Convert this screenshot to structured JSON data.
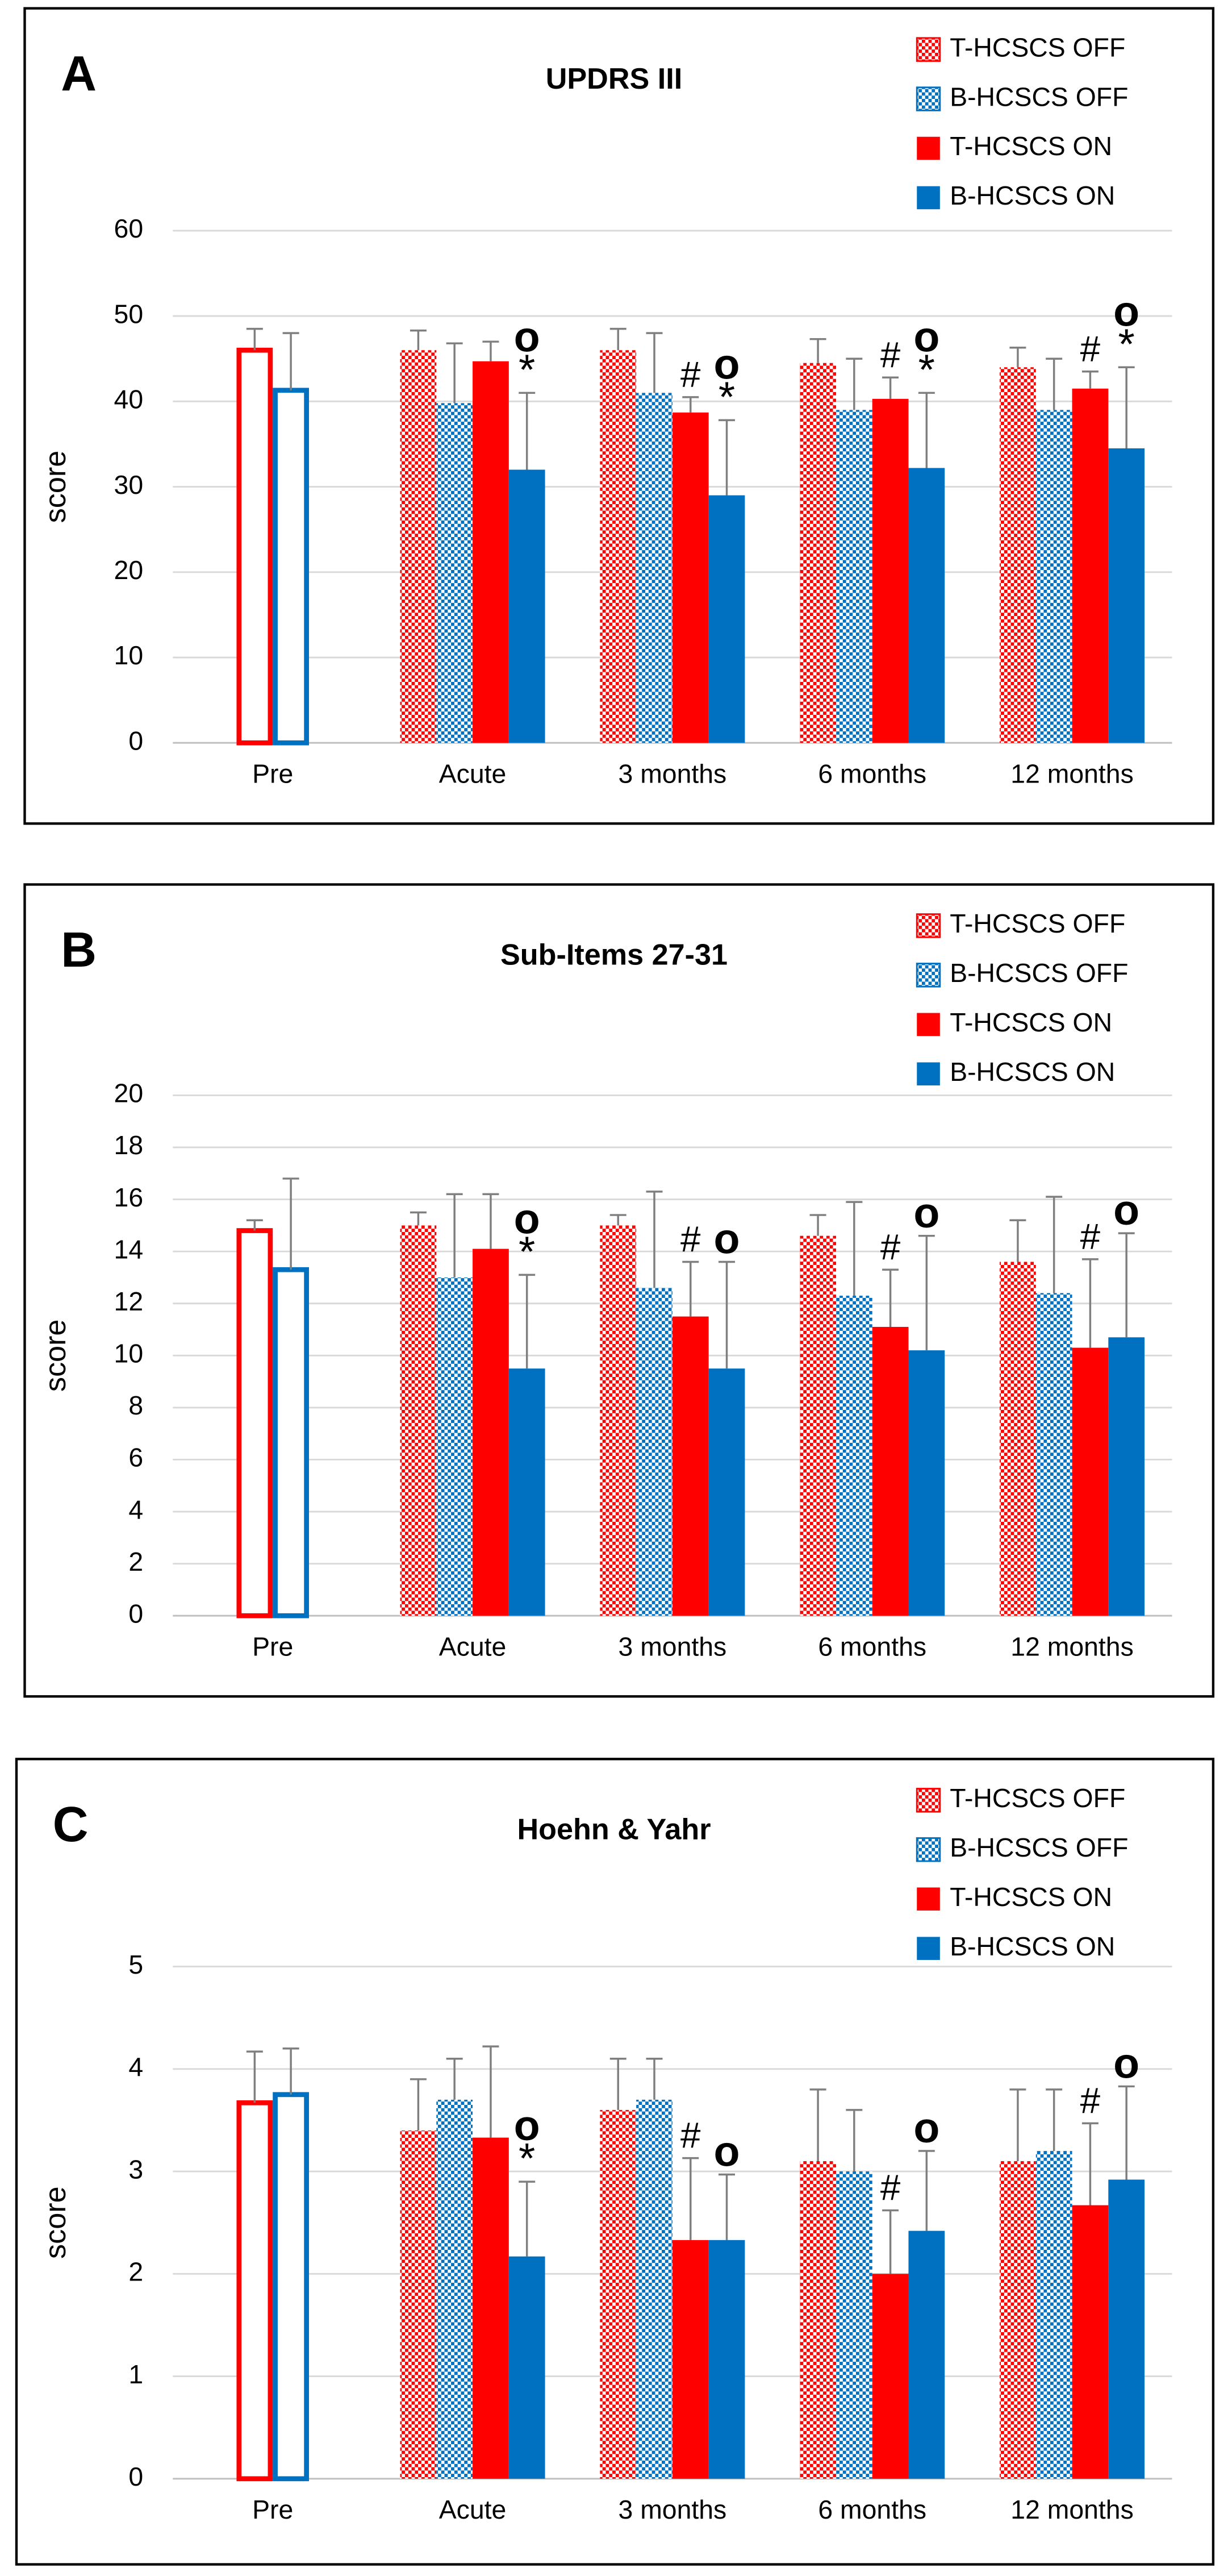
{
  "chart_data": [
    {
      "type": "bar",
      "panel": "A",
      "title": "UPDRS III",
      "y_label": "score",
      "categories": [
        "Pre",
        "Acute",
        "3 months",
        "6 months",
        "12 months"
      ],
      "hollow_category_index": 0,
      "ylim": [
        0,
        60
      ],
      "yticks": [
        0,
        10,
        20,
        30,
        40,
        50,
        60
      ],
      "grid": true,
      "series": [
        {
          "name": "T-HCSCS OFF",
          "color": "#ff0000",
          "pattern": "checker",
          "values": [
            46,
            46,
            46,
            44.5,
            44
          ],
          "errors": [
            2.5,
            2.3,
            2.5,
            2.8,
            2.3
          ],
          "markers": [
            null,
            null,
            null,
            null,
            null
          ]
        },
        {
          "name": "B-HCSCS OFF",
          "color": "#0070c0",
          "pattern": "checker",
          "values": [
            41.3,
            39.8,
            41,
            39,
            39
          ],
          "errors": [
            6.7,
            7,
            7,
            6,
            6
          ],
          "markers": [
            null,
            null,
            null,
            null,
            null
          ]
        },
        {
          "name": "T-HCSCS ON",
          "color": "#ff0000",
          "pattern": "solid",
          "values": [
            null,
            44.7,
            38.7,
            40.3,
            41.5
          ],
          "errors": [
            null,
            2.3,
            1.8,
            2.5,
            2
          ],
          "markers": [
            null,
            null,
            [
              "#"
            ],
            [
              "#"
            ],
            [
              "#"
            ]
          ]
        },
        {
          "name": "B-HCSCS ON",
          "color": "#0070c0",
          "pattern": "solid",
          "values": [
            null,
            32,
            29,
            32.2,
            34.5
          ],
          "errors": [
            null,
            9,
            8.8,
            8.8,
            9.5
          ],
          "markers": [
            null,
            [
              "o",
              "*"
            ],
            [
              "o",
              "*"
            ],
            [
              "o",
              "*"
            ],
            [
              "o",
              "*"
            ]
          ]
        }
      ]
    },
    {
      "type": "bar",
      "panel": "B",
      "title": "Sub-Items 27-31",
      "y_label": "score",
      "categories": [
        "Pre",
        "Acute",
        "3 months",
        "6 months",
        "12 months"
      ],
      "hollow_category_index": 0,
      "ylim": [
        0,
        20
      ],
      "yticks": [
        0,
        2,
        4,
        6,
        8,
        10,
        12,
        14,
        16,
        18,
        20
      ],
      "grid": true,
      "series": [
        {
          "name": "T-HCSCS OFF",
          "color": "#ff0000",
          "pattern": "checker",
          "values": [
            14.8,
            15,
            15,
            14.6,
            13.6
          ],
          "errors": [
            0.4,
            0.5,
            0.4,
            0.8,
            1.6
          ],
          "markers": [
            null,
            null,
            null,
            null,
            null
          ]
        },
        {
          "name": "B-HCSCS OFF",
          "color": "#0070c0",
          "pattern": "checker",
          "values": [
            13.3,
            13,
            12.6,
            12.3,
            12.4
          ],
          "errors": [
            3.5,
            3.2,
            3.7,
            3.6,
            3.7
          ],
          "markers": [
            null,
            null,
            null,
            null,
            null
          ]
        },
        {
          "name": "T-HCSCS ON",
          "color": "#ff0000",
          "pattern": "solid",
          "values": [
            null,
            14.1,
            11.5,
            11.1,
            10.3
          ],
          "errors": [
            null,
            2.1,
            2.1,
            2.2,
            3.4
          ],
          "markers": [
            null,
            null,
            [
              "#"
            ],
            [
              "#"
            ],
            [
              "#"
            ]
          ]
        },
        {
          "name": "B-HCSCS ON",
          "color": "#0070c0",
          "pattern": "solid",
          "values": [
            null,
            9.5,
            9.5,
            10.2,
            10.7
          ],
          "errors": [
            null,
            3.6,
            4.1,
            4.4,
            4
          ],
          "markers": [
            null,
            [
              "o",
              "*"
            ],
            [
              "o"
            ],
            [
              "o"
            ],
            [
              "o"
            ]
          ]
        }
      ]
    },
    {
      "type": "bar",
      "panel": "C",
      "title": "Hoehn & Yahr",
      "y_label": "score",
      "categories": [
        "Pre",
        "Acute",
        "3 months",
        "6 months",
        "12 months"
      ],
      "hollow_category_index": 0,
      "ylim": [
        0,
        5
      ],
      "yticks": [
        0,
        1,
        2,
        3,
        4,
        5
      ],
      "grid": true,
      "series": [
        {
          "name": "T-HCSCS OFF",
          "color": "#ff0000",
          "pattern": "checker",
          "values": [
            3.67,
            3.4,
            3.6,
            3.1,
            3.1
          ],
          "errors": [
            0.5,
            0.5,
            0.5,
            0.7,
            0.7
          ],
          "markers": [
            null,
            null,
            null,
            null,
            null
          ]
        },
        {
          "name": "B-HCSCS OFF",
          "color": "#0070c0",
          "pattern": "checker",
          "values": [
            3.75,
            3.7,
            3.7,
            3.0,
            3.2
          ],
          "errors": [
            0.45,
            0.4,
            0.4,
            0.6,
            0.6
          ],
          "markers": [
            null,
            null,
            null,
            null,
            null
          ]
        },
        {
          "name": "T-HCSCS ON",
          "color": "#ff0000",
          "pattern": "solid",
          "values": [
            null,
            3.33,
            2.33,
            2.0,
            2.67
          ],
          "errors": [
            null,
            0.89,
            0.8,
            0.62,
            0.8
          ],
          "markers": [
            null,
            null,
            [
              "#"
            ],
            [
              "#"
            ],
            [
              "#"
            ]
          ]
        },
        {
          "name": "B-HCSCS ON",
          "color": "#0070c0",
          "pattern": "solid",
          "values": [
            null,
            2.17,
            2.33,
            2.42,
            2.92
          ],
          "errors": [
            null,
            0.73,
            0.64,
            0.78,
            0.91
          ],
          "markers": [
            null,
            [
              "o",
              "*"
            ],
            [
              "o"
            ],
            [
              "o"
            ],
            [
              "o"
            ]
          ]
        }
      ]
    }
  ]
}
